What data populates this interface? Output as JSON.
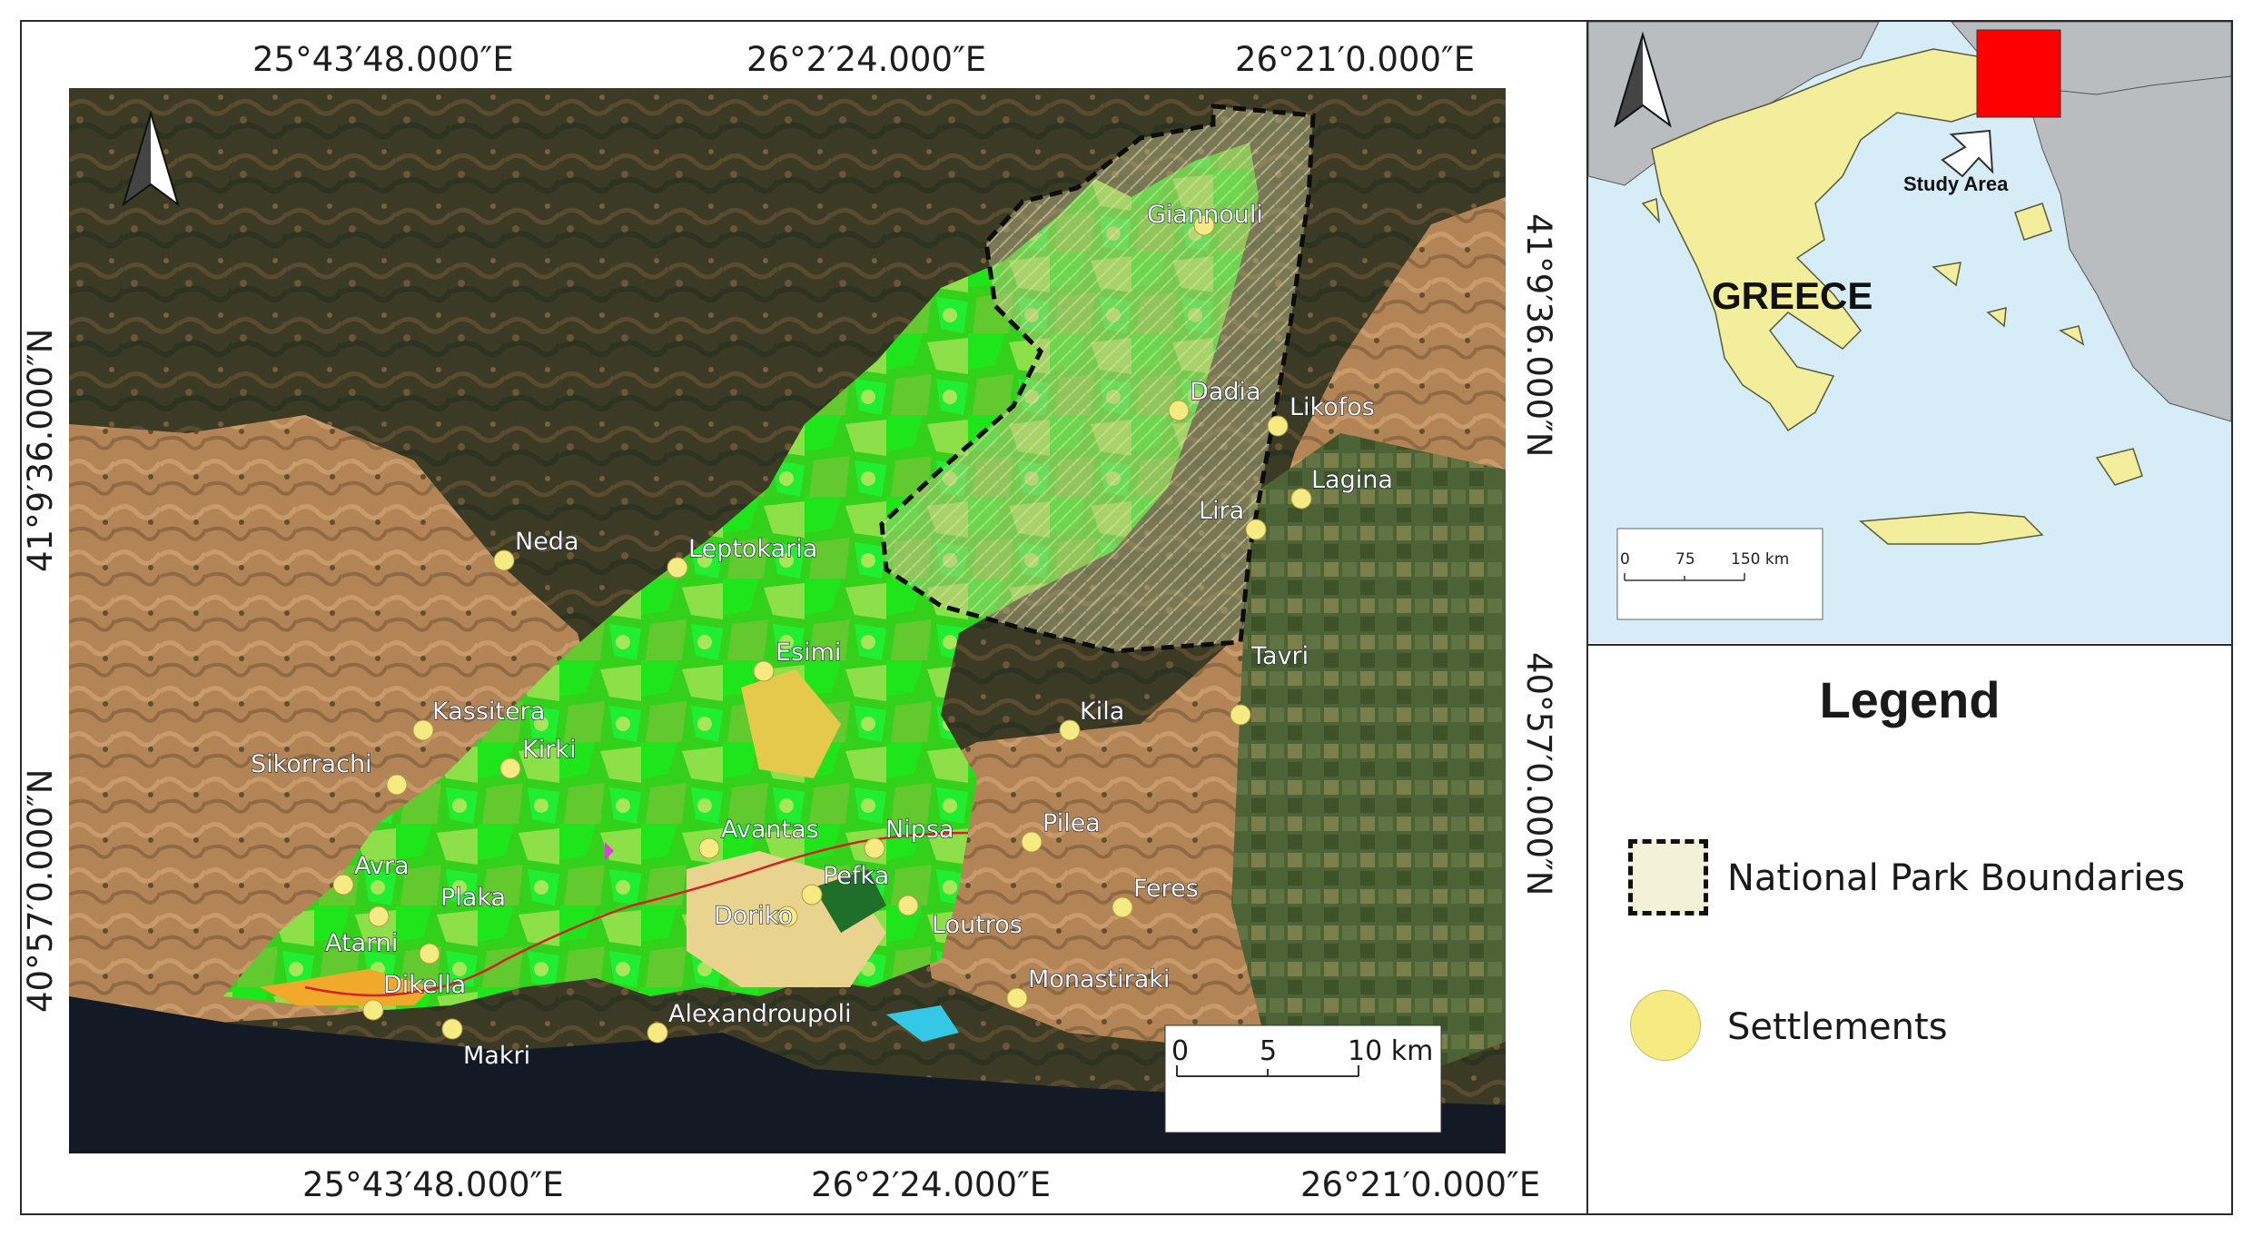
{
  "top_coords": [
    "25°43′48.000″E",
    "26°2′24.000″E",
    "26°21′0.000″E"
  ],
  "bottom_coords": [
    "25°43′48.000″E",
    "26°2′24.000″E",
    "26°21′0.000″E"
  ],
  "left_coords": [
    "41°9′36.000″N",
    "40°57′0.000″N"
  ],
  "right_coords": [
    "41°9′36.000″N",
    "40°57′0.000″N"
  ],
  "settlements": [
    "Giannouli",
    "Dadia",
    "Likofos",
    "Lagina",
    "Lira",
    "Neda",
    "Leptokaria",
    "Esimi",
    "Tavri",
    "Kila",
    "Kassitera",
    "Kirki",
    "Sikorrachi",
    "Avantas",
    "Nipsa",
    "Pilea",
    "Avra",
    "Plaka",
    "Pefka",
    "Feres",
    "Doriko",
    "Loutros",
    "Atarni",
    "Dikella",
    "Monastiraki",
    "Alexandroupoli",
    "Makri"
  ],
  "scale_main": {
    "labels": [
      "0",
      "5",
      "10 km"
    ]
  },
  "inset": {
    "country_label": "GREECE",
    "study_area_label": "Study Area",
    "scale_labels": [
      "0",
      "75",
      "150 km"
    ]
  },
  "legend": {
    "title": "Legend",
    "items": [
      {
        "label": "National Park Boundaries"
      },
      {
        "label": "Settlements"
      }
    ]
  },
  "colors": {
    "park_fill": "#f3f2d9",
    "settlement": "#f6ea82",
    "study_area": "#ff0000",
    "sea": "#d6ecf6",
    "land": "#f3ee9c"
  }
}
